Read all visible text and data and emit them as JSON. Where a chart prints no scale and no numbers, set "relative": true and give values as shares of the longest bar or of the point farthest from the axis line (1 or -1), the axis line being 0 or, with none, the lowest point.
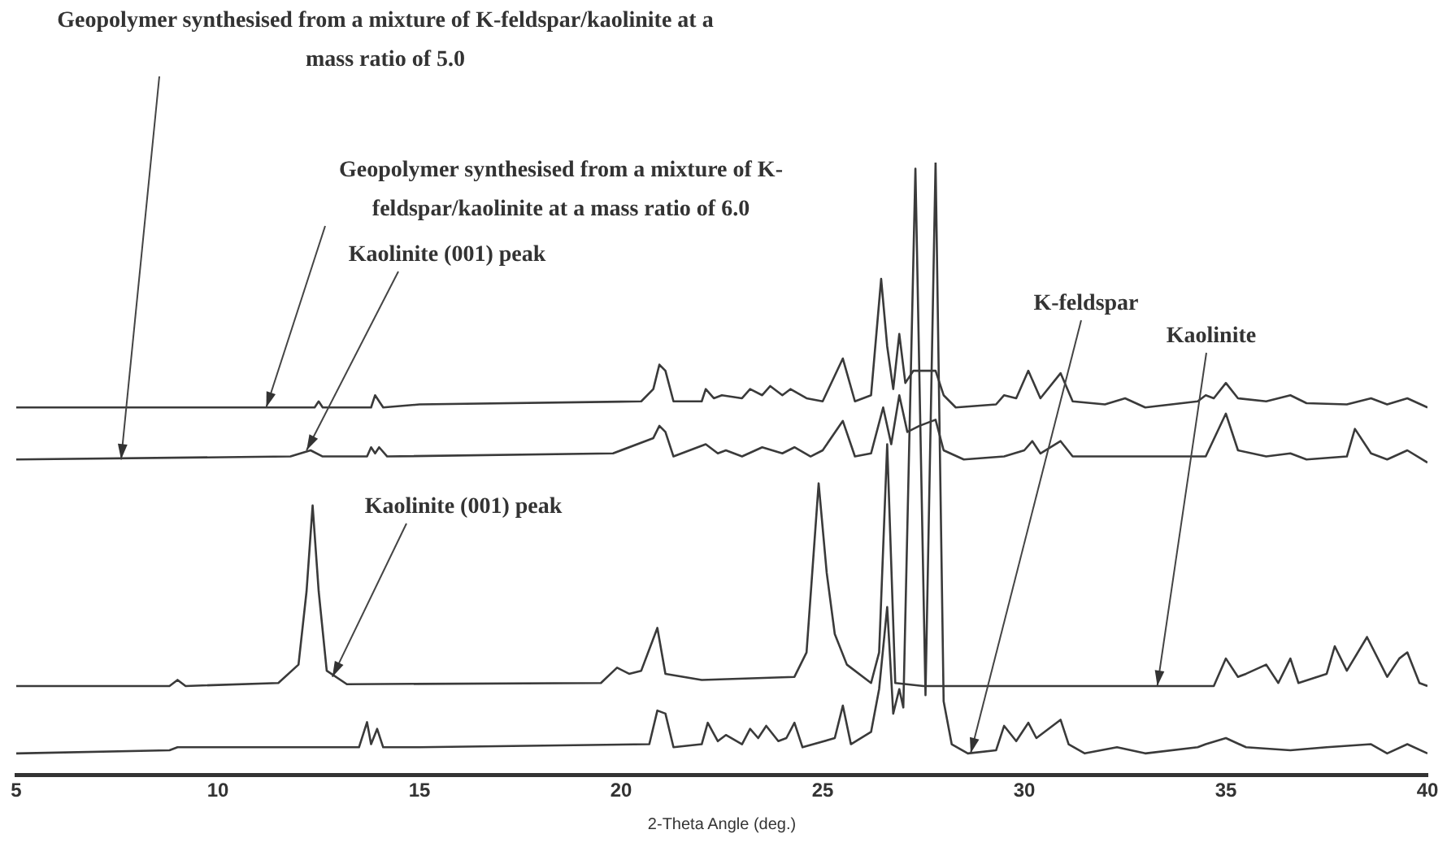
{
  "chart_data": {
    "type": "line",
    "relative": true,
    "xlabel": "2-Theta Angle (deg.)",
    "xlim": [
      5,
      40
    ],
    "xticks": [
      5,
      10,
      15,
      20,
      25,
      30,
      35,
      40
    ],
    "series": [
      {
        "color": "#3a3a3a",
        "x": [
          5,
          12.4,
          12.5,
          12.6,
          13.8,
          13.9,
          14.1,
          15,
          20.5,
          20.8,
          20.95,
          21.1,
          21.3,
          22,
          22.1,
          22.3,
          22.5,
          23,
          23.2,
          23.5,
          23.7,
          24,
          24.2,
          24.6,
          25,
          25.5,
          25.8,
          26.2,
          26.45,
          26.6,
          26.75,
          26.9,
          27.05,
          27.25,
          27.8,
          28,
          28.3,
          29.3,
          29.5,
          29.8,
          30.1,
          30.4,
          30.9,
          31.2,
          32,
          32.5,
          33,
          34.3,
          34.5,
          34.7,
          35,
          35.3,
          36,
          36.6,
          37,
          38,
          38.6,
          39,
          39.5,
          40
        ],
        "values": [
          0.6,
          0.6,
          0.61,
          0.6,
          0.6,
          0.62,
          0.6,
          0.605,
          0.61,
          0.63,
          0.67,
          0.66,
          0.61,
          0.61,
          0.63,
          0.615,
          0.62,
          0.615,
          0.63,
          0.62,
          0.635,
          0.62,
          0.63,
          0.615,
          0.61,
          0.68,
          0.61,
          0.62,
          0.81,
          0.7,
          0.63,
          0.72,
          0.64,
          0.66,
          0.66,
          0.62,
          0.6,
          0.605,
          0.62,
          0.615,
          0.66,
          0.615,
          0.656,
          0.61,
          0.605,
          0.615,
          0.6,
          0.61,
          0.62,
          0.615,
          0.64,
          0.615,
          0.61,
          0.62,
          0.607,
          0.605,
          0.615,
          0.605,
          0.615,
          0.6
        ]
      },
      {
        "color": "#3a3a3a",
        "x": [
          5,
          11.8,
          12.3,
          12.6,
          13.7,
          13.8,
          13.9,
          14,
          14.2,
          19.8,
          20.8,
          20.95,
          21.1,
          21.3,
          22.1,
          22.4,
          22.6,
          23,
          23.5,
          24,
          24.3,
          24.7,
          25,
          25.5,
          25.8,
          26.2,
          26.5,
          26.7,
          26.9,
          27.1,
          27.4,
          27.8,
          28,
          28.5,
          29.5,
          30,
          30.2,
          30.4,
          30.9,
          31.2,
          34.5,
          35,
          35.3,
          36,
          36.6,
          37,
          38,
          38.2,
          38.6,
          39,
          39.5,
          40
        ],
        "values": [
          0.515,
          0.52,
          0.53,
          0.52,
          0.52,
          0.535,
          0.525,
          0.535,
          0.52,
          0.525,
          0.55,
          0.57,
          0.56,
          0.52,
          0.54,
          0.525,
          0.53,
          0.52,
          0.535,
          0.525,
          0.535,
          0.52,
          0.53,
          0.578,
          0.52,
          0.525,
          0.6,
          0.54,
          0.62,
          0.56,
          0.57,
          0.58,
          0.53,
          0.515,
          0.52,
          0.53,
          0.545,
          0.525,
          0.545,
          0.52,
          0.52,
          0.59,
          0.53,
          0.52,
          0.525,
          0.515,
          0.52,
          0.565,
          0.525,
          0.515,
          0.53,
          0.51
        ]
      },
      {
        "color": "#3a3a3a",
        "x": [
          5,
          8.8,
          9,
          9.2,
          11.5,
          12,
          12.2,
          12.35,
          12.5,
          12.7,
          13.2,
          19.5,
          19.9,
          20.2,
          20.5,
          20.9,
          21.1,
          22,
          24.3,
          24.6,
          24.9,
          25.1,
          25.3,
          25.6,
          26.2,
          26.4,
          26.6,
          26.8,
          27.5,
          34.7,
          35,
          35.3,
          35.5,
          36,
          36.3,
          36.6,
          36.8,
          37.5,
          37.7,
          38,
          38.5,
          39,
          39.3,
          39.5,
          39.8,
          40
        ],
        "values": [
          0.145,
          0.145,
          0.155,
          0.145,
          0.15,
          0.18,
          0.3,
          0.44,
          0.3,
          0.17,
          0.148,
          0.15,
          0.175,
          0.165,
          0.17,
          0.24,
          0.165,
          0.155,
          0.16,
          0.2,
          0.476,
          0.33,
          0.23,
          0.18,
          0.15,
          0.2,
          0.54,
          0.15,
          0.145,
          0.145,
          0.19,
          0.16,
          0.165,
          0.18,
          0.15,
          0.19,
          0.15,
          0.165,
          0.21,
          0.17,
          0.225,
          0.16,
          0.19,
          0.2,
          0.15,
          0.145
        ]
      },
      {
        "color": "#3a3a3a",
        "x": [
          5,
          8.8,
          9,
          13.5,
          13.7,
          13.8,
          13.95,
          14.1,
          15,
          20.7,
          20.9,
          21.1,
          21.3,
          22,
          22.15,
          22.4,
          22.6,
          23,
          23.2,
          23.4,
          23.6,
          23.9,
          24.1,
          24.3,
          24.5,
          25.3,
          25.5,
          25.7,
          26.2,
          26.4,
          26.6,
          26.75,
          26.9,
          27,
          27.3,
          27.55,
          27.8,
          28,
          28.2,
          28.6,
          29.3,
          29.5,
          29.8,
          30.1,
          30.3,
          30.9,
          31.1,
          31.5,
          32.3,
          33,
          34.3,
          34.5,
          35,
          35.5,
          36.6,
          37.5,
          38.6,
          39,
          39.5,
          40
        ],
        "values": [
          0.035,
          0.04,
          0.045,
          0.045,
          0.086,
          0.05,
          0.075,
          0.045,
          0.045,
          0.05,
          0.105,
          0.1,
          0.045,
          0.05,
          0.085,
          0.055,
          0.065,
          0.05,
          0.075,
          0.06,
          0.08,
          0.055,
          0.06,
          0.085,
          0.045,
          0.06,
          0.113,
          0.05,
          0.07,
          0.14,
          0.274,
          0.1,
          0.14,
          0.11,
          0.99,
          0.13,
          1,
          0.12,
          0.05,
          0.035,
          0.04,
          0.08,
          0.055,
          0.085,
          0.06,
          0.09,
          0.05,
          0.035,
          0.045,
          0.035,
          0.045,
          0.05,
          0.06,
          0.045,
          0.04,
          0.045,
          0.05,
          0.035,
          0.05,
          0.035
        ]
      }
    ],
    "annotations": [
      {
        "text": "Geopolymer synthesised from a mixture of K-feldspar/kaolinite at a mass ratio of 5.0",
        "x": 7.6,
        "y": 0.515
      },
      {
        "text": "Geopolymer synthesised from a mixture of K-feldspar/kaolinite at a mass ratio of 6.0",
        "x": 11.2,
        "y": 0.6
      },
      {
        "text": "Kaolinite (001) peak",
        "x": 12.2,
        "y": 0.53
      },
      {
        "text": "Kaolinite (001) peak",
        "x": 12.84,
        "y": 0.16
      },
      {
        "text": "K-feldspar",
        "x": 28.67,
        "y": 0.035
      },
      {
        "text": "Kaolinite",
        "x": 33.3,
        "y": 0.145
      }
    ]
  }
}
